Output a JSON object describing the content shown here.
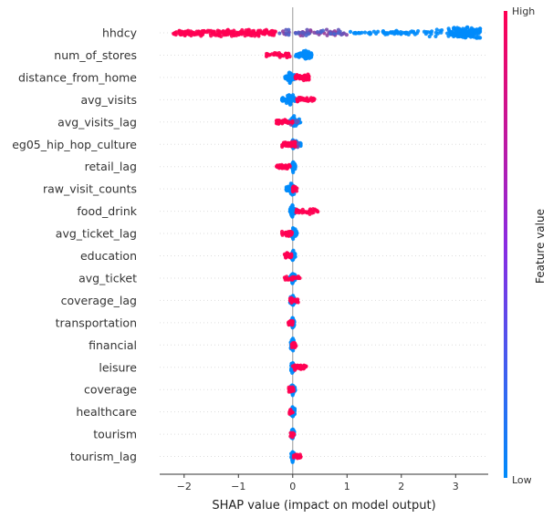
{
  "chart_data": {
    "type": "scatter",
    "subtype": "shap-beeswarm-summary",
    "xlabel": "SHAP value (impact on model output)",
    "xlim": [
      -2.45,
      3.6
    ],
    "xticks": [
      -2,
      -1,
      0,
      1,
      2,
      3
    ],
    "xtick_labels": [
      "−2",
      "−1",
      "0",
      "1",
      "2",
      "3"
    ],
    "grid": false,
    "zero_line": true,
    "colors": {
      "high": "#ff0052",
      "low": "#008bfb",
      "zero_line": "#999999"
    },
    "colorbar": {
      "title": "Feature value",
      "high_label": "High",
      "low_label": "Low",
      "placement": "right"
    },
    "features": [
      {
        "name": "hhdcy",
        "blue_range": [
          1.0,
          3.45
        ],
        "red_range": [
          -2.2,
          -0.3
        ],
        "mid_range": [
          -0.3,
          1.0
        ],
        "red_pct": 0.45,
        "blue_peak": 3.2
      },
      {
        "name": "num_of_stores",
        "blue_range": [
          0.05,
          0.35
        ],
        "red_range": [
          -0.5,
          -0.05
        ],
        "red_pct": 0.25,
        "blue_peak": 0.25
      },
      {
        "name": "distance_from_home",
        "blue_range": [
          -0.15,
          0.05
        ],
        "red_range": [
          0.05,
          0.3
        ],
        "red_pct": 0.35,
        "blue_peak": -0.05
      },
      {
        "name": "avg_visits",
        "blue_range": [
          -0.2,
          0.05
        ],
        "red_range": [
          0.05,
          0.4
        ],
        "red_pct": 0.25,
        "blue_peak": -0.05
      },
      {
        "name": "avg_visits_lag",
        "blue_range": [
          -0.05,
          0.15
        ],
        "red_range": [
          -0.3,
          0.0
        ],
        "mid_range": [
          -0.1,
          0.1
        ],
        "red_pct": 0.3,
        "blue_peak": 0.02
      },
      {
        "name": "eg05_hip_hop_culture",
        "blue_range": [
          0.0,
          0.15
        ],
        "red_range": [
          -0.2,
          0.05
        ],
        "mid_range": [
          -0.05,
          0.1
        ],
        "red_pct": 0.4,
        "blue_peak": 0.02
      },
      {
        "name": "retail_lag",
        "blue_range": [
          -0.02,
          0.05
        ],
        "red_range": [
          -0.3,
          -0.05
        ],
        "red_pct": 0.35,
        "blue_peak": 0.01
      },
      {
        "name": "raw_visit_counts",
        "blue_range": [
          -0.12,
          0.05
        ],
        "red_range": [
          0.0,
          0.08
        ],
        "red_pct": 0.15,
        "blue_peak": -0.02
      },
      {
        "name": "food_drink",
        "blue_range": [
          -0.05,
          0.05
        ],
        "red_range": [
          0.05,
          0.5
        ],
        "red_pct": 0.2,
        "blue_peak": -0.01
      },
      {
        "name": "avg_ticket_lag",
        "blue_range": [
          -0.02,
          0.08
        ],
        "red_range": [
          -0.2,
          0.0
        ],
        "red_pct": 0.25,
        "blue_peak": 0.01
      },
      {
        "name": "education",
        "blue_range": [
          -0.02,
          0.05
        ],
        "red_range": [
          -0.15,
          -0.02
        ],
        "red_pct": 0.2,
        "blue_peak": 0.0
      },
      {
        "name": "avg_ticket",
        "blue_range": [
          -0.05,
          0.05
        ],
        "red_range": [
          -0.15,
          0.15
        ],
        "red_pct": 0.2,
        "blue_peak": 0.0
      },
      {
        "name": "coverage_lag",
        "blue_range": [
          -0.05,
          0.05
        ],
        "red_range": [
          -0.05,
          0.1
        ],
        "red_pct": 0.25,
        "blue_peak": 0.0
      },
      {
        "name": "transportation",
        "blue_range": [
          -0.03,
          0.03
        ],
        "red_range": [
          -0.08,
          0.0
        ],
        "red_pct": 0.15,
        "blue_peak": 0.0
      },
      {
        "name": "financial",
        "blue_range": [
          -0.04,
          0.04
        ],
        "red_range": [
          -0.02,
          0.06
        ],
        "red_pct": 0.15,
        "blue_peak": 0.0
      },
      {
        "name": "leisure",
        "blue_range": [
          -0.03,
          0.03
        ],
        "red_range": [
          0.0,
          0.25
        ],
        "red_pct": 0.3,
        "blue_peak": 0.0
      },
      {
        "name": "coverage",
        "blue_range": [
          -0.05,
          0.05
        ],
        "red_range": [
          -0.08,
          0.02
        ],
        "red_pct": 0.15,
        "blue_peak": 0.0
      },
      {
        "name": "healthcare",
        "blue_range": [
          -0.04,
          0.04
        ],
        "red_range": [
          -0.06,
          0.0
        ],
        "red_pct": 0.12,
        "blue_peak": 0.0
      },
      {
        "name": "tourism",
        "blue_range": [
          -0.03,
          0.03
        ],
        "red_range": [
          -0.05,
          0.03
        ],
        "red_pct": 0.12,
        "blue_peak": 0.0
      },
      {
        "name": "tourism_lag",
        "blue_range": [
          -0.03,
          0.03
        ],
        "red_range": [
          0.0,
          0.15
        ],
        "red_pct": 0.2,
        "blue_peak": 0.0
      }
    ]
  }
}
